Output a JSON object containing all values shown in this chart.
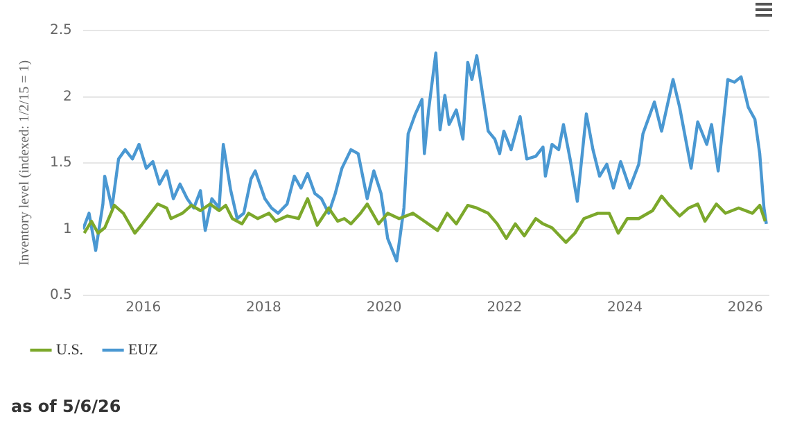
{
  "chart_data": {
    "type": "line",
    "ylabel": "Inventory level (indexed: 1/2/15 = 1)",
    "xlim": [
      2015,
      2026.4
    ],
    "xticks": [
      2016,
      2018,
      2020,
      2022,
      2024,
      2026
    ],
    "ylim": [
      0.5,
      2.5
    ],
    "yticks": [
      0.5,
      1,
      1.5,
      2,
      2.5
    ],
    "grid": "y",
    "legend": "bottom left",
    "marker": "none",
    "line_style": "solid",
    "annotations": [
      "as of 5/6/26"
    ],
    "series": [
      {
        "name": "U.S.",
        "color": "#7ca82b",
        "x": [
          2015.02,
          2015.14,
          2015.25,
          2015.36,
          2015.52,
          2015.67,
          2015.86,
          2015.97,
          2016.12,
          2016.24,
          2016.39,
          2016.46,
          2016.65,
          2016.8,
          2016.95,
          2017.11,
          2017.26,
          2017.37,
          2017.48,
          2017.64,
          2017.75,
          2017.9,
          2018.09,
          2018.2,
          2018.39,
          2018.58,
          2018.73,
          2018.89,
          2019.08,
          2019.23,
          2019.34,
          2019.45,
          2019.61,
          2019.72,
          2019.91,
          2020.06,
          2020.25,
          2020.48,
          2020.67,
          2020.89,
          2021.05,
          2021.2,
          2021.39,
          2021.54,
          2021.73,
          2021.88,
          2022.03,
          2022.18,
          2022.33,
          2022.52,
          2022.64,
          2022.79,
          2023.02,
          2023.17,
          2023.32,
          2023.55,
          2023.74,
          2023.89,
          2024.04,
          2024.23,
          2024.46,
          2024.61,
          2024.72,
          2024.91,
          2025.06,
          2025.21,
          2025.33,
          2025.52,
          2025.67,
          2025.89,
          2026.12,
          2026.24,
          2026.33
        ],
        "values": [
          0.97,
          1.06,
          0.97,
          1.01,
          1.18,
          1.12,
          0.97,
          1.03,
          1.12,
          1.19,
          1.16,
          1.08,
          1.12,
          1.18,
          1.14,
          1.19,
          1.14,
          1.18,
          1.08,
          1.04,
          1.12,
          1.08,
          1.12,
          1.06,
          1.1,
          1.08,
          1.23,
          1.03,
          1.16,
          1.06,
          1.08,
          1.04,
          1.12,
          1.19,
          1.04,
          1.12,
          1.08,
          1.12,
          1.06,
          0.99,
          1.12,
          1.04,
          1.18,
          1.16,
          1.12,
          1.04,
          0.93,
          1.04,
          0.95,
          1.08,
          1.04,
          1.01,
          0.9,
          0.97,
          1.08,
          1.12,
          1.12,
          0.97,
          1.08,
          1.08,
          1.14,
          1.25,
          1.19,
          1.1,
          1.16,
          1.19,
          1.06,
          1.19,
          1.12,
          1.16,
          1.12,
          1.18,
          1.06
        ]
      },
      {
        "name": "EUZ",
        "color": "#4a98d2",
        "x": [
          2015,
          2015.1,
          2015.21,
          2015.33,
          2015.36,
          2015.48,
          2015.59,
          2015.7,
          2015.82,
          2015.93,
          2016.05,
          2016.16,
          2016.27,
          2016.39,
          2016.5,
          2016.61,
          2016.73,
          2016.84,
          2016.95,
          2017.03,
          2017.14,
          2017.26,
          2017.33,
          2017.45,
          2017.56,
          2017.67,
          2017.79,
          2017.86,
          2018.02,
          2018.13,
          2018.24,
          2018.39,
          2018.51,
          2018.62,
          2018.73,
          2018.85,
          2018.96,
          2019.08,
          2019.19,
          2019.3,
          2019.45,
          2019.57,
          2019.72,
          2019.83,
          2019.95,
          2020.06,
          2020.21,
          2020.33,
          2020.4,
          2020.52,
          2020.63,
          2020.67,
          2020.74,
          2020.86,
          2020.93,
          2021.01,
          2021.08,
          2021.2,
          2021.31,
          2021.39,
          2021.46,
          2021.54,
          2021.65,
          2021.73,
          2021.84,
          2021.92,
          2021.99,
          2022.11,
          2022.26,
          2022.37,
          2022.52,
          2022.64,
          2022.68,
          2022.79,
          2022.9,
          2022.98,
          2023.09,
          2023.21,
          2023.36,
          2023.47,
          2023.58,
          2023.7,
          2023.81,
          2023.93,
          2024.08,
          2024.23,
          2024.3,
          2024.49,
          2024.61,
          2024.8,
          2024.91,
          2025.1,
          2025.21,
          2025.36,
          2025.44,
          2025.55,
          2025.71,
          2025.82,
          2025.93,
          2026.05,
          2026.16,
          2026.24,
          2026.31,
          2026.35
        ],
        "values": [
          1.0,
          1.12,
          0.84,
          1.19,
          1.4,
          1.16,
          1.53,
          1.6,
          1.53,
          1.64,
          1.46,
          1.51,
          1.34,
          1.44,
          1.23,
          1.34,
          1.23,
          1.16,
          1.29,
          0.99,
          1.23,
          1.16,
          1.64,
          1.3,
          1.08,
          1.12,
          1.38,
          1.44,
          1.23,
          1.16,
          1.12,
          1.19,
          1.4,
          1.31,
          1.42,
          1.27,
          1.23,
          1.12,
          1.27,
          1.46,
          1.6,
          1.57,
          1.23,
          1.44,
          1.27,
          0.93,
          0.76,
          1.16,
          1.72,
          1.87,
          1.98,
          1.57,
          1.9,
          2.33,
          1.75,
          2.01,
          1.79,
          1.9,
          1.68,
          2.26,
          2.13,
          2.31,
          1.98,
          1.74,
          1.68,
          1.57,
          1.74,
          1.6,
          1.85,
          1.53,
          1.55,
          1.62,
          1.4,
          1.64,
          1.6,
          1.79,
          1.53,
          1.21,
          1.87,
          1.6,
          1.4,
          1.49,
          1.31,
          1.51,
          1.31,
          1.49,
          1.72,
          1.96,
          1.74,
          2.13,
          1.92,
          1.46,
          1.81,
          1.64,
          1.79,
          1.44,
          2.13,
          2.11,
          2.15,
          1.92,
          1.83,
          1.57,
          1.16,
          1.04
        ]
      }
    ]
  }
}
